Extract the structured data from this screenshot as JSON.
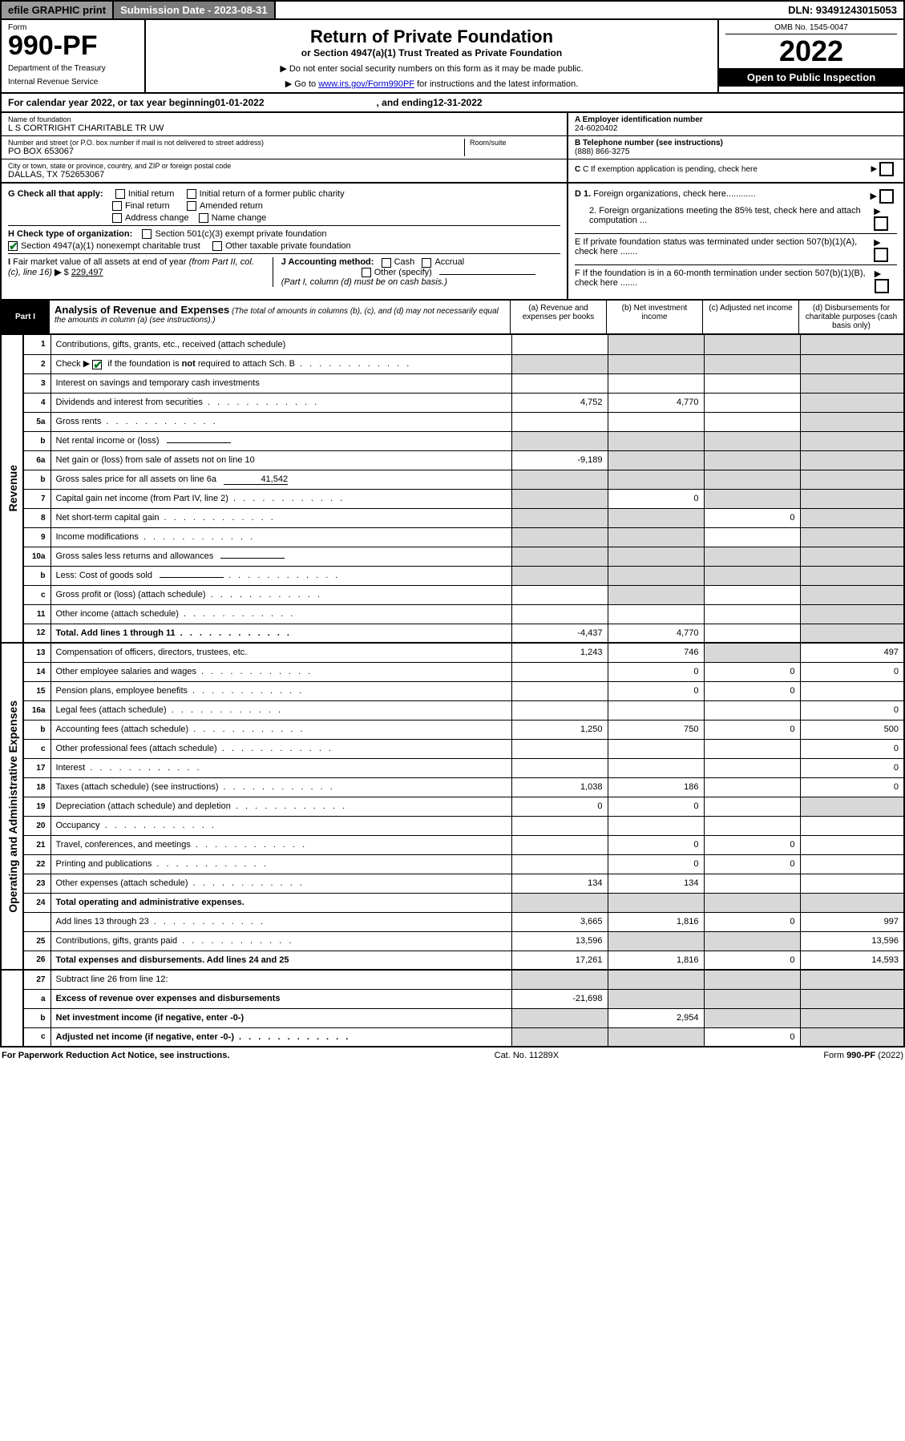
{
  "topbar": {
    "efile": "efile GRAPHIC print",
    "sub_label": "Submission Date - 2023-08-31",
    "dln": "DLN: 93491243015053"
  },
  "header": {
    "form_word": "Form",
    "form_num": "990-PF",
    "dept": "Department of the Treasury",
    "irs": "Internal Revenue Service",
    "title": "Return of Private Foundation",
    "subtitle": "or Section 4947(a)(1) Trust Treated as Private Foundation",
    "note1": "▶ Do not enter social security numbers on this form as it may be made public.",
    "note2_pre": "▶ Go to ",
    "note2_link": "www.irs.gov/Form990PF",
    "note2_post": " for instructions and the latest information.",
    "omb": "OMB No. 1545-0047",
    "year": "2022",
    "open": "Open to Public Inspection"
  },
  "cal": {
    "pre": "For calendar year 2022, or tax year beginning ",
    "begin": "01-01-2022",
    "mid": ", and ending ",
    "end": "12-31-2022"
  },
  "info": {
    "name_lbl": "Name of foundation",
    "name": "L S CORTRIGHT CHARITABLE TR UW",
    "addr_lbl": "Number and street (or P.O. box number if mail is not delivered to street address)",
    "room_lbl": "Room/suite",
    "addr": "PO BOX 653067",
    "city_lbl": "City or town, state or province, country, and ZIP or foreign postal code",
    "city": "DALLAS, TX  752653067",
    "a_lbl": "A Employer identification number",
    "a_val": "24-6020402",
    "b_lbl": "B Telephone number (see instructions)",
    "b_val": "(888) 866-3275",
    "c_lbl": "C If exemption application is pending, check here"
  },
  "checks": {
    "g": "G Check all that apply:",
    "g_items": [
      "Initial return",
      "Initial return of a former public charity",
      "Final return",
      "Amended return",
      "Address change",
      "Name change"
    ],
    "h": "H Check type of organization:",
    "h1": "Section 501(c)(3) exempt private foundation",
    "h2": "Section 4947(a)(1) nonexempt charitable trust",
    "h3": "Other taxable private foundation",
    "i_pre": "I Fair market value of all assets at end of year (from Part II, col. (c), line 16) ▶ $ ",
    "i_val": "229,497",
    "j": "J Accounting method:",
    "j_cash": "Cash",
    "j_acc": "Accrual",
    "j_other": "Other (specify)",
    "j_note": "(Part I, column (d) must be on cash basis.)",
    "d1": "D 1. Foreign organizations, check here............",
    "d2": "2. Foreign organizations meeting the 85% test, check here and attach computation ...",
    "e": "E  If private foundation status was terminated under section 507(b)(1)(A), check here .......",
    "f": "F  If the foundation is in a 60-month termination under section 507(b)(1)(B), check here ......."
  },
  "part1": {
    "tag": "Part I",
    "title": "Analysis of Revenue and Expenses",
    "sub": "(The total of amounts in columns (b), (c), and (d) may not necessarily equal the amounts in column (a) (see instructions).)",
    "col_a": "(a)  Revenue and expenses per books",
    "col_b": "(b)  Net investment income",
    "col_c": "(c)  Adjusted net income",
    "col_d": "(d)  Disbursements for charitable purposes (cash basis only)"
  },
  "side": {
    "rev": "Revenue",
    "exp": "Operating and Administrative Expenses"
  },
  "rows": {
    "r1": {
      "n": "1",
      "d": "Contributions, gifts, grants, etc., received (attach schedule)"
    },
    "r2": {
      "n": "2",
      "d": "Check ▶       if the foundation is not required to attach Sch. B",
      "chk": true,
      "dots": true
    },
    "r3": {
      "n": "3",
      "d": "Interest on savings and temporary cash investments"
    },
    "r4": {
      "n": "4",
      "d": "Dividends and interest from securities",
      "dots": true,
      "a": "4,752",
      "b": "4,770"
    },
    "r5a": {
      "n": "5a",
      "d": "Gross rents",
      "dots": true
    },
    "r5b": {
      "n": "b",
      "d": "Net rental income or (loss)",
      "inline": ""
    },
    "r6a": {
      "n": "6a",
      "d": "Net gain or (loss) from sale of assets not on line 10",
      "a": "-9,189"
    },
    "r6b": {
      "n": "b",
      "d": "Gross sales price for all assets on line 6a",
      "inline": "41,542"
    },
    "r7": {
      "n": "7",
      "d": "Capital gain net income (from Part IV, line 2)",
      "dots": true,
      "b": "0"
    },
    "r8": {
      "n": "8",
      "d": "Net short-term capital gain",
      "dots": true,
      "c": "0"
    },
    "r9": {
      "n": "9",
      "d": "Income modifications",
      "dots": true
    },
    "r10a": {
      "n": "10a",
      "d": "Gross sales less returns and allowances",
      "inline": ""
    },
    "r10b": {
      "n": "b",
      "d": "Less: Cost of goods sold",
      "dots": true,
      "inline": ""
    },
    "r10c": {
      "n": "c",
      "d": "Gross profit or (loss) (attach schedule)",
      "dots": true
    },
    "r11": {
      "n": "11",
      "d": "Other income (attach schedule)",
      "dots": true
    },
    "r12": {
      "n": "12",
      "d": "Total. Add lines 1 through 11",
      "dots": true,
      "bold": true,
      "a": "-4,437",
      "b": "4,770"
    },
    "r13": {
      "n": "13",
      "d": "Compensation of officers, directors, trustees, etc.",
      "a": "1,243",
      "b": "746",
      "dd": "497"
    },
    "r14": {
      "n": "14",
      "d": "Other employee salaries and wages",
      "dots": true,
      "b": "0",
      "c": "0",
      "dd": "0"
    },
    "r15": {
      "n": "15",
      "d": "Pension plans, employee benefits",
      "dots": true,
      "b": "0",
      "c": "0"
    },
    "r16a": {
      "n": "16a",
      "d": "Legal fees (attach schedule)",
      "dots": true,
      "dd": "0"
    },
    "r16b": {
      "n": "b",
      "d": "Accounting fees (attach schedule)",
      "dots": true,
      "a": "1,250",
      "b": "750",
      "c": "0",
      "dd": "500"
    },
    "r16c": {
      "n": "c",
      "d": "Other professional fees (attach schedule)",
      "dots": true,
      "dd": "0"
    },
    "r17": {
      "n": "17",
      "d": "Interest",
      "dots": true,
      "dd": "0"
    },
    "r18": {
      "n": "18",
      "d": "Taxes (attach schedule) (see instructions)",
      "dots": true,
      "a": "1,038",
      "b": "186",
      "dd": "0"
    },
    "r19": {
      "n": "19",
      "d": "Depreciation (attach schedule) and depletion",
      "dots": true,
      "a": "0",
      "b": "0"
    },
    "r20": {
      "n": "20",
      "d": "Occupancy",
      "dots": true
    },
    "r21": {
      "n": "21",
      "d": "Travel, conferences, and meetings",
      "dots": true,
      "b": "0",
      "c": "0"
    },
    "r22": {
      "n": "22",
      "d": "Printing and publications",
      "dots": true,
      "b": "0",
      "c": "0"
    },
    "r23": {
      "n": "23",
      "d": "Other expenses (attach schedule)",
      "dots": true,
      "a": "134",
      "b": "134"
    },
    "r24": {
      "n": "24",
      "d": "Total operating and administrative expenses.",
      "bold": true
    },
    "r24b": {
      "n": "",
      "d": "Add lines 13 through 23",
      "dots": true,
      "a": "3,665",
      "b": "1,816",
      "c": "0",
      "dd": "997"
    },
    "r25": {
      "n": "25",
      "d": "Contributions, gifts, grants paid",
      "dots": true,
      "a": "13,596",
      "dd": "13,596"
    },
    "r26": {
      "n": "26",
      "d": "Total expenses and disbursements. Add lines 24 and 25",
      "bold": true,
      "a": "17,261",
      "b": "1,816",
      "c": "0",
      "dd": "14,593"
    },
    "r27": {
      "n": "27",
      "d": "Subtract line 26 from line 12:"
    },
    "r27a": {
      "n": "a",
      "d": "Excess of revenue over expenses and disbursements",
      "bold": true,
      "a": "-21,698"
    },
    "r27b": {
      "n": "b",
      "d": "Net investment income (if negative, enter -0-)",
      "bold": true,
      "b": "2,954"
    },
    "r27c": {
      "n": "c",
      "d": "Adjusted net income (if negative, enter -0-)",
      "bold": true,
      "dots": true,
      "c": "0"
    }
  },
  "footer": {
    "left": "For Paperwork Reduction Act Notice, see instructions.",
    "mid": "Cat. No. 11289X",
    "right": "Form 990-PF (2022)"
  }
}
